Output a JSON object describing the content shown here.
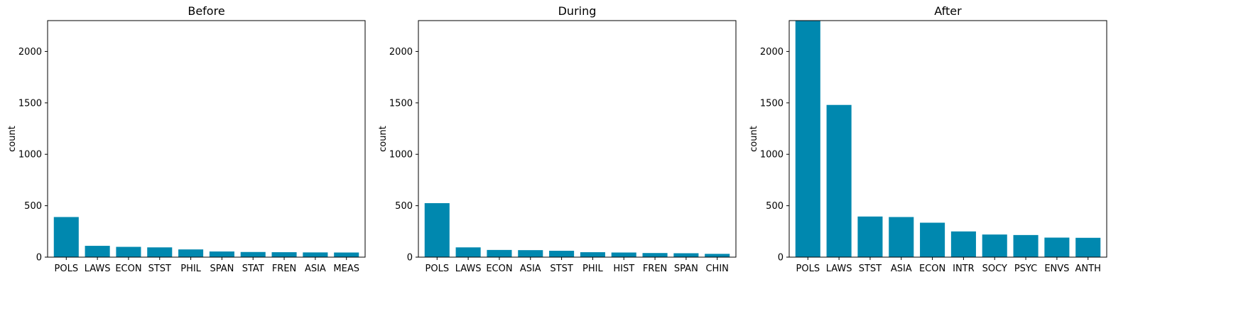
{
  "colors": {
    "bar": "#0088AF",
    "axis": "#000000",
    "background": "#ffffff"
  },
  "chart_data": [
    {
      "type": "bar",
      "title": "Before",
      "xlabel": "",
      "ylabel": "count",
      "ylim": [
        0,
        2300
      ],
      "yticks": [
        0,
        500,
        1000,
        1500,
        2000
      ],
      "categories": [
        "POLS",
        "LAWS",
        "ECON",
        "STST",
        "PHIL",
        "SPAN",
        "STAT",
        "FREN",
        "ASIA",
        "MEAS"
      ],
      "values": [
        390,
        110,
        100,
        95,
        75,
        55,
        50,
        48,
        46,
        45
      ]
    },
    {
      "type": "bar",
      "title": "During",
      "xlabel": "",
      "ylabel": "count",
      "ylim": [
        0,
        2300
      ],
      "yticks": [
        0,
        500,
        1000,
        1500,
        2000
      ],
      "categories": [
        "POLS",
        "LAWS",
        "ECON",
        "ASIA",
        "STST",
        "PHIL",
        "HIST",
        "FREN",
        "SPAN",
        "CHIN"
      ],
      "values": [
        525,
        95,
        70,
        68,
        62,
        48,
        45,
        40,
        38,
        32
      ]
    },
    {
      "type": "bar",
      "title": "After",
      "xlabel": "",
      "ylabel": "count",
      "ylim": [
        0,
        2300
      ],
      "yticks": [
        0,
        500,
        1000,
        1500,
        2000
      ],
      "categories": [
        "POLS",
        "LAWS",
        "STST",
        "ASIA",
        "ECON",
        "INTR",
        "SOCY",
        "PSYC",
        "ENVS",
        "ANTH"
      ],
      "values": [
        2300,
        1480,
        395,
        390,
        335,
        250,
        220,
        215,
        190,
        188
      ]
    }
  ]
}
